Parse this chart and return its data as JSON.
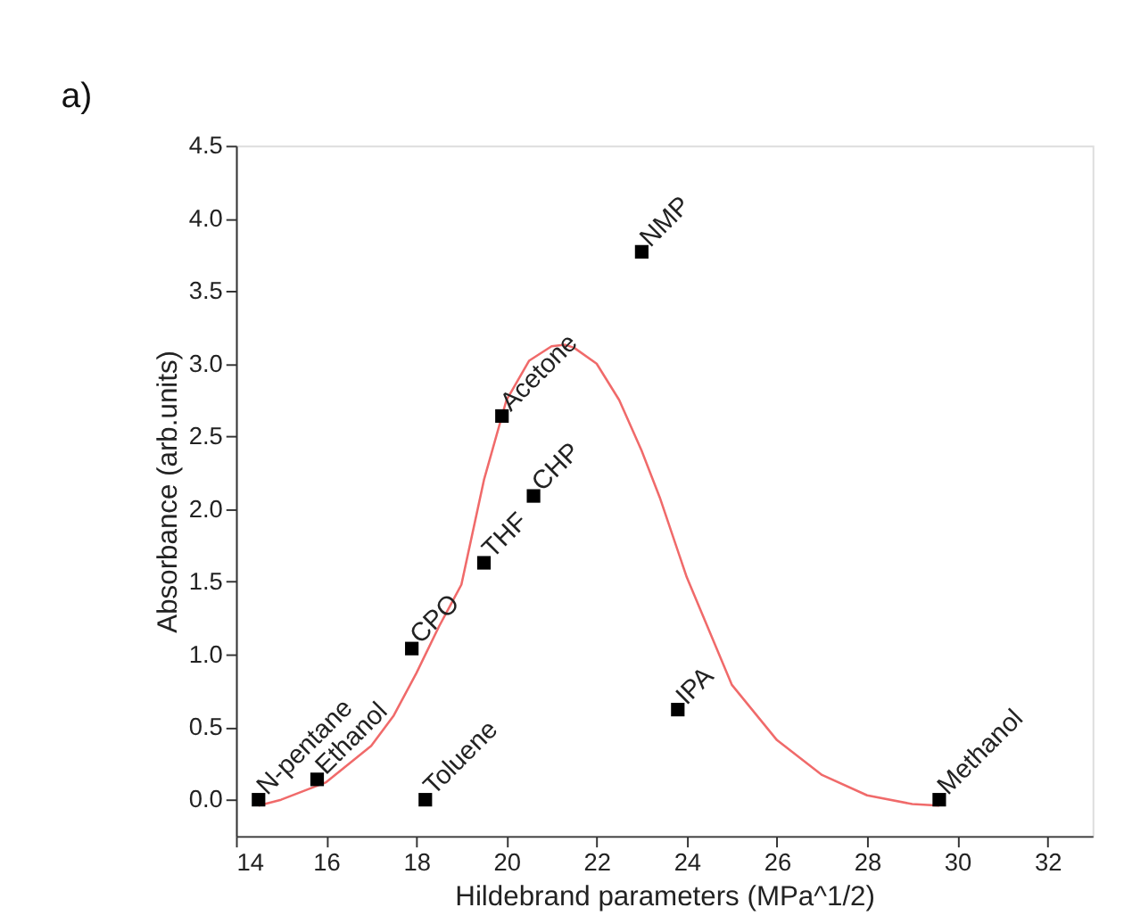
{
  "chart_data": {
    "type": "scatter",
    "xlabel": "Hildebrand parameters (MPa^1/2)",
    "ylabel": "Absorbance (arb.units)",
    "xlim": [
      14,
      33
    ],
    "xticks": [
      14,
      16,
      18,
      20,
      22,
      24,
      26,
      28,
      30,
      32
    ],
    "ylim": [
      -0.25,
      4.5
    ],
    "yticks": [
      {
        "value": 0,
        "label": "0.0"
      },
      {
        "value": 0.5,
        "label": "0.5"
      },
      {
        "value": 1,
        "label": "1.0"
      },
      {
        "value": 1.5,
        "label": "1.5"
      },
      {
        "value": 2,
        "label": "2.0"
      },
      {
        "value": 2.5,
        "label": "2.5"
      },
      {
        "value": 3,
        "label": "3.0"
      },
      {
        "value": 3.5,
        "label": "3.5"
      },
      {
        "value": 4,
        "label": "4.0"
      },
      {
        "value": 4.5,
        "label": "4.5"
      }
    ],
    "grid": false,
    "series": [
      {
        "type": "line",
        "color": "#f06a6a",
        "marker": "none",
        "line_style": "solid",
        "x": [
          14.5,
          15,
          16,
          17,
          17.5,
          18,
          18.5,
          19,
          19.5,
          20,
          20.5,
          21,
          21.3,
          21.5,
          22,
          22.5,
          23,
          23.4,
          24,
          25,
          26,
          27,
          28,
          29,
          29.6
        ],
        "values": [
          -0.04,
          0.0,
          0.12,
          0.37,
          0.58,
          0.87,
          1.19,
          1.48,
          2.2,
          2.75,
          3.02,
          3.12,
          3.13,
          3.11,
          3.0,
          2.75,
          2.4,
          2.08,
          1.53,
          0.79,
          0.41,
          0.17,
          0.03,
          -0.03,
          -0.04
        ]
      },
      {
        "type": "scatter",
        "color": "#000000",
        "marker": "square",
        "x": [
          14.5,
          15.8,
          17.9,
          18.2,
          19.5,
          20.6,
          19.9,
          23.0,
          23.8,
          29.6
        ],
        "values": [
          0,
          0.14,
          1.04,
          0,
          1.63,
          2.09,
          2.64,
          3.77,
          0.62,
          0
        ]
      }
    ],
    "annotations": [
      "a)",
      {
        "text": "N-pentane",
        "x": 14.5,
        "y": 0
      },
      {
        "text": "Ethanol",
        "x": 15.8,
        "y": 0.14
      },
      {
        "text": "CPO",
        "x": 17.9,
        "y": 1.04
      },
      {
        "text": "Toluene",
        "x": 18.2,
        "y": 0
      },
      {
        "text": "THF",
        "x": 19.5,
        "y": 1.63
      },
      {
        "text": "CHP",
        "x": 20.6,
        "y": 2.09
      },
      {
        "text": "Acetone",
        "x": 19.9,
        "y": 2.64
      },
      {
        "text": "NMP",
        "x": 23.0,
        "y": 3.77
      },
      {
        "text": "IPA",
        "x": 23.8,
        "y": 0.62
      },
      {
        "text": "Methanol",
        "x": 29.6,
        "y": 0
      }
    ]
  }
}
